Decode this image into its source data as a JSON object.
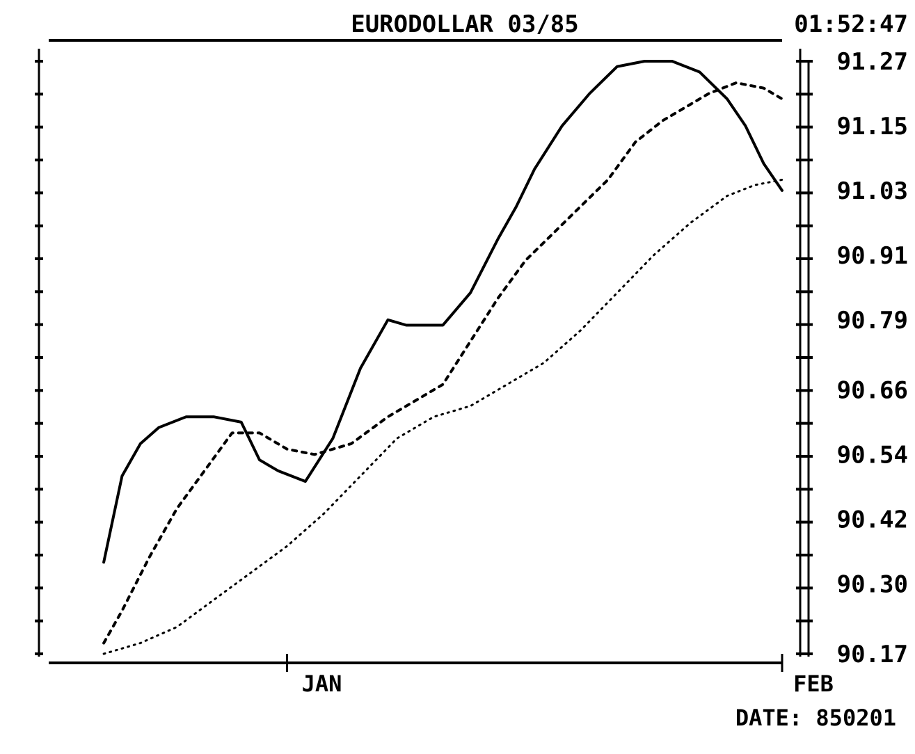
{
  "chart_data": {
    "type": "line",
    "title": "EURODOLLAR 03/85",
    "time": "01:52:47",
    "date_label": "DATE: 850201",
    "x_tick_labels": [
      "JAN",
      "FEB"
    ],
    "x_tick_positions": [
      2.6,
      8.0
    ],
    "y_tick_labels": [
      "91.27",
      "91.15",
      "91.03",
      "90.91",
      "90.79",
      "90.66",
      "90.54",
      "90.42",
      "90.30",
      "90.17"
    ],
    "ylim": [
      90.17,
      91.27
    ],
    "xlim": [
      0,
      8.0
    ],
    "grid": false,
    "series": [
      {
        "style": "solid",
        "x": [
          0.6,
          0.8,
          1.0,
          1.2,
          1.5,
          1.8,
          2.1,
          2.3,
          2.5,
          2.8,
          3.1,
          3.4,
          3.7,
          3.9,
          4.1,
          4.3,
          4.6,
          4.9,
          5.1,
          5.3,
          5.6,
          5.9,
          6.2,
          6.5,
          6.8,
          7.1,
          7.4,
          7.6,
          7.8,
          8.0
        ],
        "y": [
          90.34,
          90.5,
          90.56,
          90.59,
          90.61,
          90.61,
          90.6,
          90.53,
          90.51,
          90.49,
          90.57,
          90.7,
          90.79,
          90.78,
          90.78,
          90.78,
          90.84,
          90.94,
          91.0,
          91.07,
          91.15,
          91.21,
          91.26,
          91.27,
          91.27,
          91.25,
          91.2,
          91.15,
          91.08,
          91.03
        ]
      },
      {
        "style": "dashed",
        "x": [
          0.6,
          0.8,
          1.1,
          1.4,
          1.7,
          2.0,
          2.3,
          2.6,
          2.9,
          3.3,
          3.7,
          4.0,
          4.3,
          4.6,
          4.9,
          5.2,
          5.5,
          5.8,
          6.1,
          6.4,
          6.7,
          7.0,
          7.2,
          7.5,
          7.8,
          8.0
        ],
        "y": [
          90.19,
          90.25,
          90.35,
          90.44,
          90.51,
          90.58,
          90.58,
          90.55,
          90.54,
          90.56,
          90.61,
          90.64,
          90.67,
          90.75,
          90.83,
          90.9,
          90.95,
          91.0,
          91.05,
          91.12,
          91.16,
          91.19,
          91.21,
          91.23,
          91.22,
          91.2
        ]
      },
      {
        "style": "dotted",
        "x": [
          0.6,
          1.0,
          1.4,
          1.8,
          2.2,
          2.6,
          3.0,
          3.4,
          3.8,
          4.2,
          4.6,
          5.0,
          5.4,
          5.8,
          6.2,
          6.6,
          7.0,
          7.4,
          7.7,
          8.0
        ],
        "y": [
          90.17,
          90.19,
          90.22,
          90.27,
          90.32,
          90.37,
          90.43,
          90.5,
          90.57,
          90.61,
          90.63,
          90.67,
          90.71,
          90.77,
          90.84,
          90.91,
          90.97,
          91.02,
          91.04,
          91.05
        ]
      }
    ]
  }
}
